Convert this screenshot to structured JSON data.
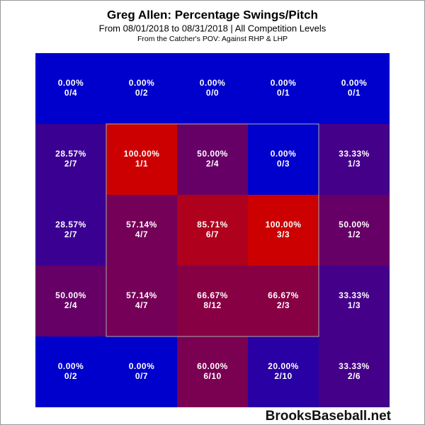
{
  "chart_data": {
    "type": "heatmap",
    "title": "Greg Allen: Percentage Swings/Pitch",
    "subtitle": "From 08/01/2018 to 08/31/2018 | All Competition Levels",
    "subtitle2": "From the Catcher's POV:  Against RHP & LHP",
    "footer": "BrooksBaseball.net",
    "color_scale": [
      "#0000cc",
      "#cc0000"
    ],
    "clim": [
      0,
      100
    ],
    "values": [
      [
        0,
        0,
        0,
        0,
        0
      ],
      [
        28.57,
        100,
        50,
        0,
        33.33
      ],
      [
        28.57,
        57.14,
        85.71,
        100,
        50
      ],
      [
        50,
        57.14,
        66.67,
        66.67,
        33.33
      ],
      [
        0,
        0,
        60,
        20,
        33.33
      ]
    ],
    "value_labels": [
      [
        "0.00%",
        "0.00%",
        "0.00%",
        "0.00%",
        "0.00%"
      ],
      [
        "28.57%",
        "100.00%",
        "50.00%",
        "0.00%",
        "33.33%"
      ],
      [
        "28.57%",
        "57.14%",
        "85.71%",
        "100.00%",
        "50.00%"
      ],
      [
        "50.00%",
        "57.14%",
        "66.67%",
        "66.67%",
        "33.33%"
      ],
      [
        "0.00%",
        "0.00%",
        "60.00%",
        "20.00%",
        "33.33%"
      ]
    ],
    "counts": [
      [
        "0/4",
        "0/2",
        "0/0",
        "0/1",
        "0/1"
      ],
      [
        "2/7",
        "1/1",
        "2/4",
        "0/3",
        "1/3"
      ],
      [
        "2/7",
        "4/7",
        "6/7",
        "3/3",
        "1/2"
      ],
      [
        "2/4",
        "4/7",
        "8/12",
        "2/3",
        "1/3"
      ],
      [
        "0/2",
        "0/7",
        "6/10",
        "2/10",
        "2/6"
      ]
    ]
  }
}
